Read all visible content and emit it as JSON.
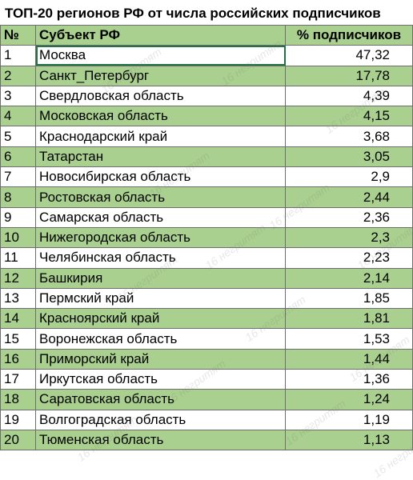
{
  "header": {
    "title": "ТОП-20 регионов РФ от числа российских подписчиков"
  },
  "watermark": "16 негритят",
  "table": {
    "columns": [
      "№",
      "Субъект РФ",
      "% подписчиков"
    ],
    "rows": [
      [
        "1",
        "Москва",
        "47,32"
      ],
      [
        "2",
        "Санкт_Петербург",
        "17,78"
      ],
      [
        "3",
        "Свердловская область",
        "4,39"
      ],
      [
        "4",
        "Московская область",
        "4,15"
      ],
      [
        "5",
        "Краснодарский край",
        "3,68"
      ],
      [
        "6",
        "Татарстан",
        "3,05"
      ],
      [
        "7",
        "Новосибирская область",
        "2,9"
      ],
      [
        "8",
        "Ростовская область",
        "2,44"
      ],
      [
        "9",
        "Самарская область",
        "2,36"
      ],
      [
        "10",
        "Нижегородская область",
        "2,3"
      ],
      [
        "11",
        "Челябинская область",
        "2,23"
      ],
      [
        "12",
        "Башкирия",
        "2,14"
      ],
      [
        "13",
        "Пермский край",
        "1,85"
      ],
      [
        "14",
        "Красноярский край",
        "1,81"
      ],
      [
        "15",
        "Воронежская область",
        "1,53"
      ],
      [
        "16",
        "Приморский край",
        "1,44"
      ],
      [
        "17",
        "Иркутская область",
        "1,36"
      ],
      [
        "18",
        "Саратовская область",
        "1,24"
      ],
      [
        "19",
        "Волгоградская область",
        "1,19"
      ],
      [
        "20",
        "Тюменская область",
        "1,13"
      ]
    ]
  }
}
